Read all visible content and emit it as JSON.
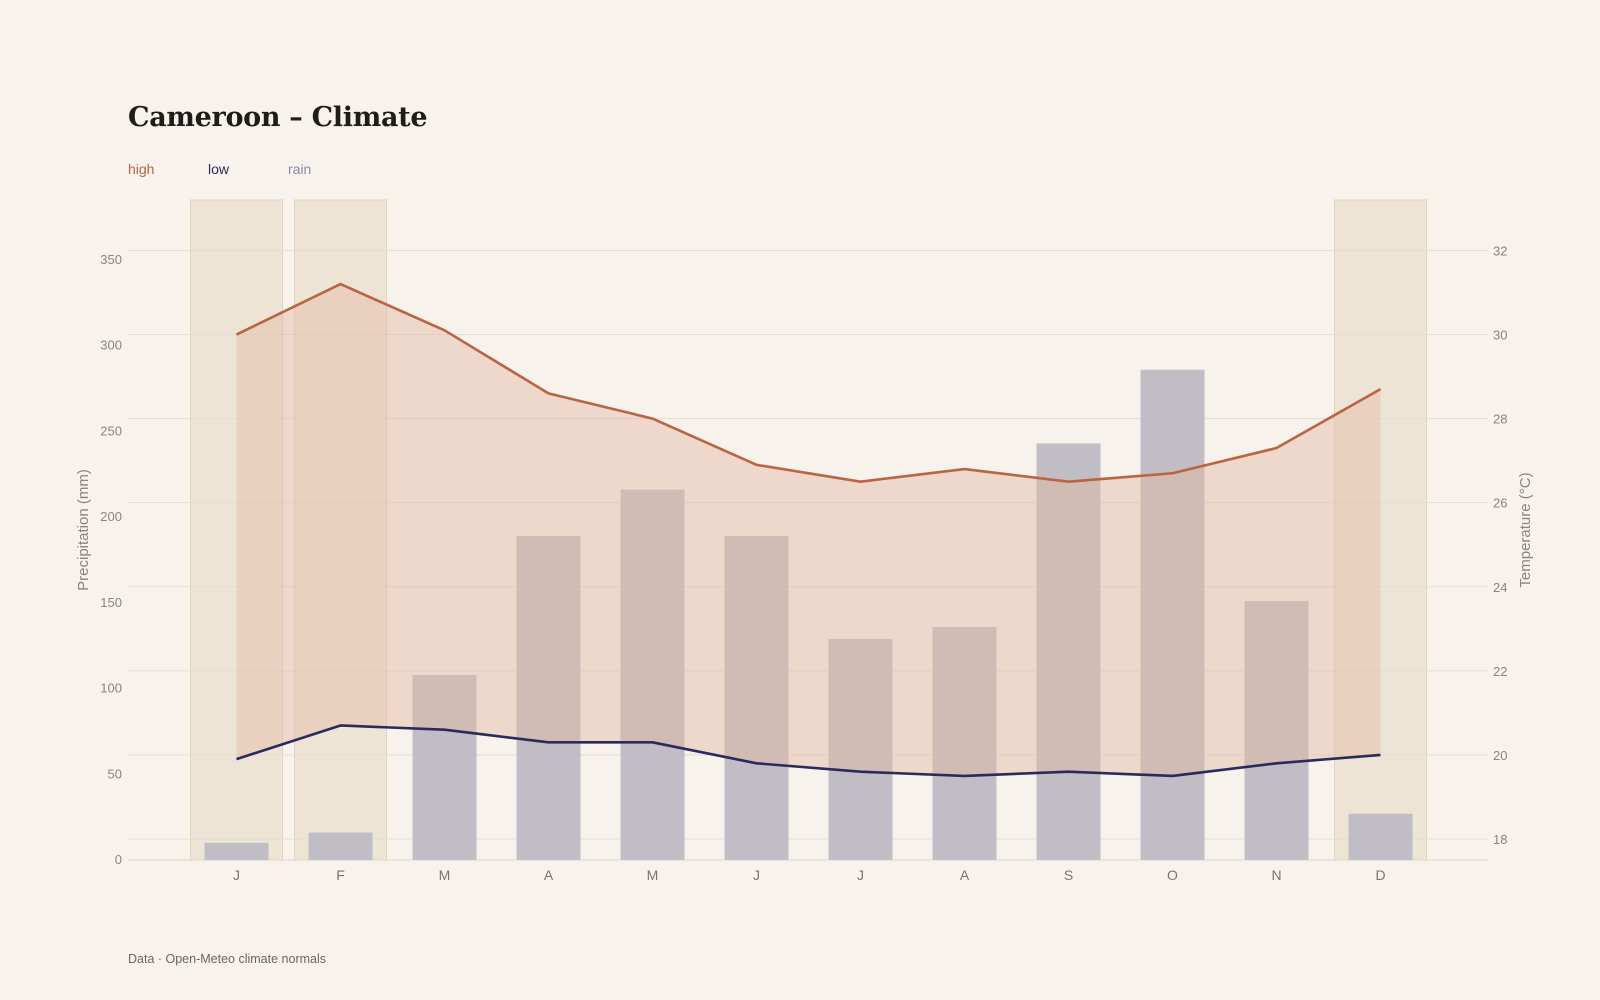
{
  "title": "Cameroon – Climate",
  "caption": "Data · Open-Meteo climate normals",
  "colors": {
    "high": "#b96443",
    "low": "#2a2a5c",
    "rain": "#8a8aa8",
    "rain_bar": "#c1bdc4",
    "band_fill": "#e3b9a4",
    "dry_highlight": "#e9dccb",
    "grid": "#e3ddd5",
    "background": "#f7f2ec"
  },
  "chart_data": {
    "type": "bar",
    "title": "Cameroon – Climate",
    "categories": [
      "J",
      "F",
      "M",
      "A",
      "M",
      "J",
      "J",
      "A",
      "S",
      "O",
      "N",
      "D"
    ],
    "highlighted_months": [
      0,
      1,
      11
    ],
    "series": [
      {
        "name": "high",
        "type": "line",
        "axis": "right",
        "values": [
          30.0,
          31.2,
          30.1,
          28.6,
          28.0,
          26.9,
          26.5,
          26.8,
          26.5,
          26.7,
          27.3,
          28.7
        ]
      },
      {
        "name": "low",
        "type": "line",
        "axis": "right",
        "values": [
          19.9,
          20.7,
          20.6,
          20.3,
          20.3,
          19.8,
          19.6,
          19.5,
          19.6,
          19.5,
          19.8,
          20.0
        ]
      },
      {
        "name": "rain",
        "type": "bar",
        "axis": "left",
        "values": [
          10,
          16,
          108,
          189,
          216,
          189,
          129,
          136,
          243,
          286,
          151,
          27
        ]
      }
    ],
    "y_left": {
      "label": "Precipitation (mm)",
      "ticks": [
        0,
        50,
        100,
        150,
        200,
        250,
        300,
        350
      ],
      "range": [
        0,
        385
      ]
    },
    "y_right": {
      "label": "Temperature (°C)",
      "ticks": [
        18,
        20,
        22,
        24,
        26,
        28,
        30,
        32
      ],
      "range": [
        17.5,
        33.2
      ]
    },
    "grid": true,
    "legend_position": "top-left"
  }
}
